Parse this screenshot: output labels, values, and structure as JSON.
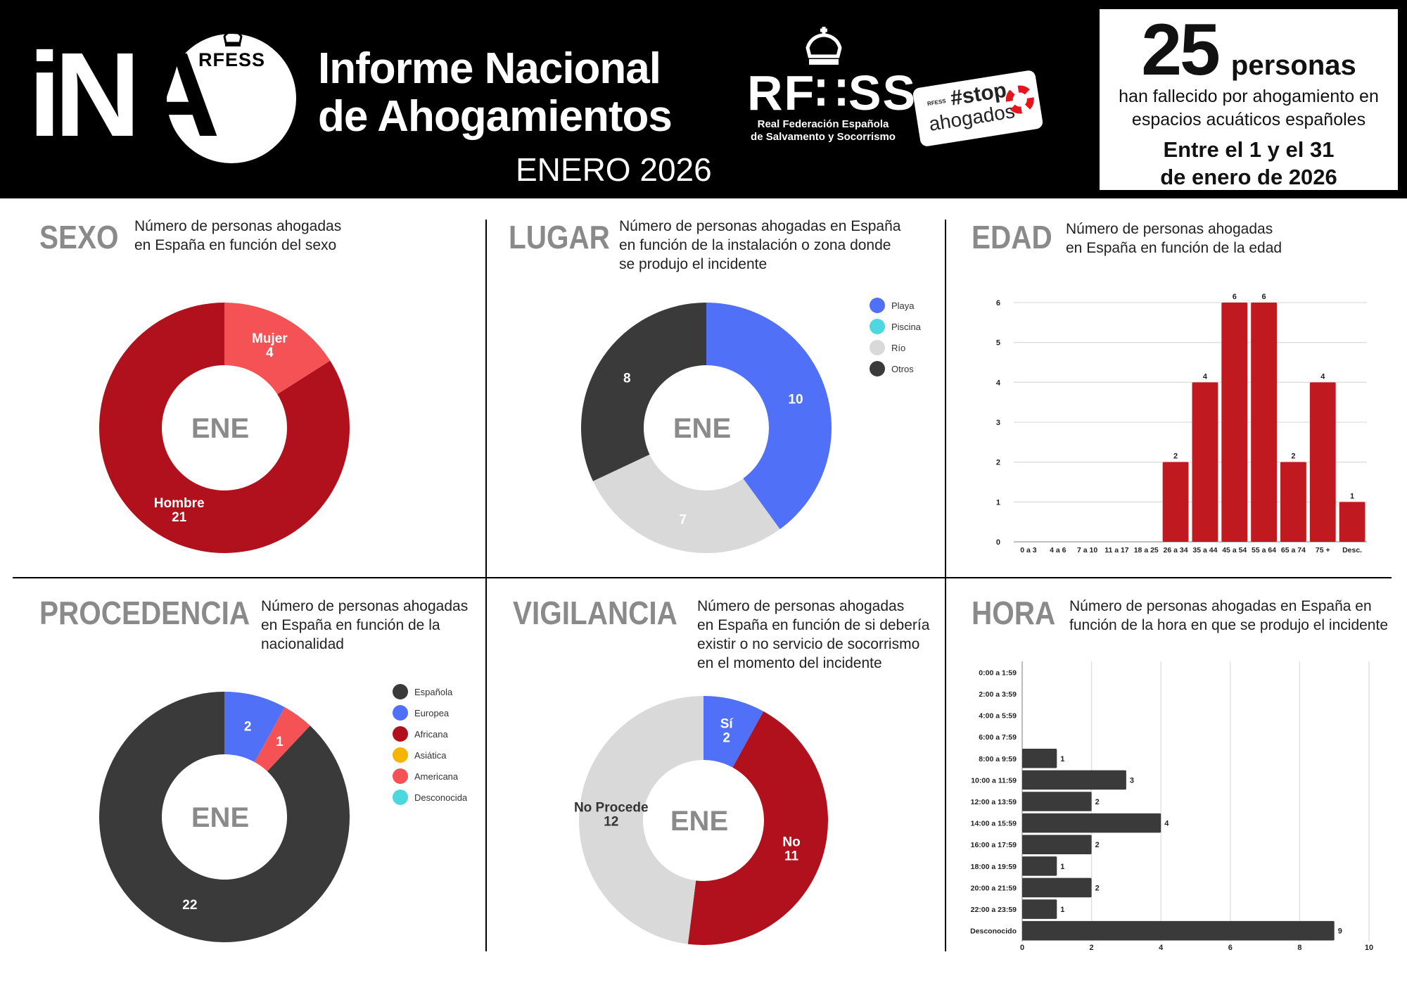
{
  "header": {
    "logo_text_1": "iN",
    "logo_text_2": "A",
    "logo_badge": "RFESS",
    "title_line1": "Informe Nacional",
    "title_line2": "de Ahogamientos",
    "period": "ENERO 2026",
    "rfess_logo": "RF∷SS",
    "rfess_name_1": "Real Federación Española",
    "rfess_name_2": "de Salvamento y Socorrismo",
    "stop_badge_mini": "RFESS",
    "stop_badge_1": "#stop",
    "stop_badge_2": "ahogados"
  },
  "summary": {
    "count": "25",
    "unit": "personas",
    "line1": "han fallecido por ahogamiento en",
    "line2": "espacios acuáticos españoles",
    "range1": "Entre el 1 y el 31",
    "range2": "de enero de 2026"
  },
  "colors": {
    "dark_red": "#b0111c",
    "light_red": "#f55256",
    "blue": "#5070f8",
    "light_gray": "#d9d9d9",
    "dark_gray": "#3a3a3a",
    "yellow": "#f4b400",
    "cyan": "#4dd8df",
    "bar_red": "#c0191f",
    "title_gray": "#8a8a8a"
  },
  "chart_data": [
    {
      "type": "pie",
      "title": "SEXO",
      "description": [
        "Número de personas ahogadas",
        "en España en función del sexo"
      ],
      "center_label": "ENE",
      "label_mode": "name-value",
      "slices": [
        {
          "label": "Mujer",
          "value": 4,
          "color": "#f55256",
          "text_color": "#ffffff"
        },
        {
          "label": "Hombre",
          "value": 21,
          "color": "#b0111c",
          "text_color": "#ffffff"
        }
      ],
      "legend": []
    },
    {
      "type": "pie",
      "title": "LUGAR",
      "description": [
        "Número de personas ahogadas en España",
        "en función de la instalación o zona donde",
        "se produjo el incidente"
      ],
      "center_label": "ENE",
      "label_mode": "value",
      "slices": [
        {
          "label": "Playa",
          "value": 10,
          "color": "#5070f8",
          "text_color": "#ffffff"
        },
        {
          "label": "Piscina",
          "value": 0,
          "color": "#4dd8df",
          "text_color": "#ffffff"
        },
        {
          "label": "Río",
          "value": 7,
          "color": "#d9d9d9",
          "text_color": "#ffffff"
        },
        {
          "label": "Otros",
          "value": 8,
          "color": "#3a3a3a",
          "text_color": "#ffffff"
        }
      ],
      "legend": [
        {
          "label": "Playa",
          "color": "#5070f8"
        },
        {
          "label": "Piscina",
          "color": "#4dd8df"
        },
        {
          "label": "Río",
          "color": "#d9d9d9"
        },
        {
          "label": "Otros",
          "color": "#3a3a3a"
        }
      ]
    },
    {
      "type": "bar",
      "orientation": "vertical",
      "title": "EDAD",
      "description": [
        "Número de personas ahogadas",
        "en España en función de la edad"
      ],
      "categories": [
        "0 a 3",
        "4 a 6",
        "7 a 10",
        "11 a 17",
        "18 a 25",
        "26 a 34",
        "35 a 44",
        "45 a 54",
        "55 a 64",
        "65 a 74",
        "75 +",
        "Desc."
      ],
      "values": [
        0,
        0,
        0,
        0,
        0,
        2,
        4,
        6,
        6,
        2,
        4,
        1
      ],
      "ylim": [
        0,
        6
      ],
      "yticks": [
        0,
        1,
        2,
        3,
        4,
        5,
        6
      ],
      "grid": true,
      "color": "#c0191f"
    },
    {
      "type": "pie",
      "title": "PROCEDENCIA",
      "description": [
        "Número de personas ahogadas",
        "en España en función de la",
        "nacionalidad"
      ],
      "center_label": "ENE",
      "label_mode": "value",
      "slices": [
        {
          "label": "Europea",
          "value": 2,
          "color": "#5070f8",
          "text_color": "#ffffff"
        },
        {
          "label": "Americana",
          "value": 1,
          "color": "#f55256",
          "text_color": "#ffffff"
        },
        {
          "label": "Española",
          "value": 22,
          "color": "#3a3a3a",
          "text_color": "#ffffff"
        },
        {
          "label": "Africana",
          "value": 0,
          "color": "#b0111c",
          "text_color": "#ffffff"
        },
        {
          "label": "Asiática",
          "value": 0,
          "color": "#f4b400",
          "text_color": "#ffffff"
        },
        {
          "label": "Desconocida",
          "value": 0,
          "color": "#4dd8df",
          "text_color": "#ffffff"
        }
      ],
      "legend": [
        {
          "label": "Española",
          "color": "#3a3a3a"
        },
        {
          "label": "Europea",
          "color": "#5070f8"
        },
        {
          "label": "Africana",
          "color": "#b0111c"
        },
        {
          "label": "Asiática",
          "color": "#f4b400"
        },
        {
          "label": "Americana",
          "color": "#f55256"
        },
        {
          "label": "Desconocida",
          "color": "#4dd8df"
        }
      ]
    },
    {
      "type": "pie",
      "title": "VIGILANCIA",
      "description": [
        "Número de personas ahogadas",
        "en España en función de si debería",
        "existir o no servicio de socorrismo",
        "en el momento del incidente"
      ],
      "center_label": "ENE",
      "label_mode": "name-value",
      "slices": [
        {
          "label": "Sí",
          "value": 2,
          "color": "#5070f8",
          "text_color": "#ffffff"
        },
        {
          "label": "No",
          "value": 11,
          "color": "#b0111c",
          "text_color": "#ffffff"
        },
        {
          "label": "No Procede",
          "value": 12,
          "color": "#d9d9d9",
          "text_color": "#333333"
        }
      ],
      "legend": []
    },
    {
      "type": "bar",
      "orientation": "horizontal",
      "title": "HORA",
      "description": [
        "Número de personas ahogadas en España en",
        "función de la hora en que se produjo el incidente"
      ],
      "categories": [
        "0:00 a 1:59",
        "2:00 a 3:59",
        "4:00 a 5:59",
        "6:00 a 7:59",
        "8:00 a 9:59",
        "10:00 a 11:59",
        "12:00 a 13:59",
        "14:00 a 15:59",
        "16:00 a 17:59",
        "18:00 a 19:59",
        "20:00 a 21:59",
        "22:00 a 23:59",
        "Desconocido"
      ],
      "values": [
        0,
        0,
        0,
        0,
        1,
        3,
        2,
        4,
        2,
        1,
        2,
        1,
        9
      ],
      "xlim": [
        0,
        10
      ],
      "xticks": [
        0,
        2,
        4,
        6,
        8,
        10
      ],
      "grid": true,
      "color": "#3a3a3a"
    }
  ]
}
